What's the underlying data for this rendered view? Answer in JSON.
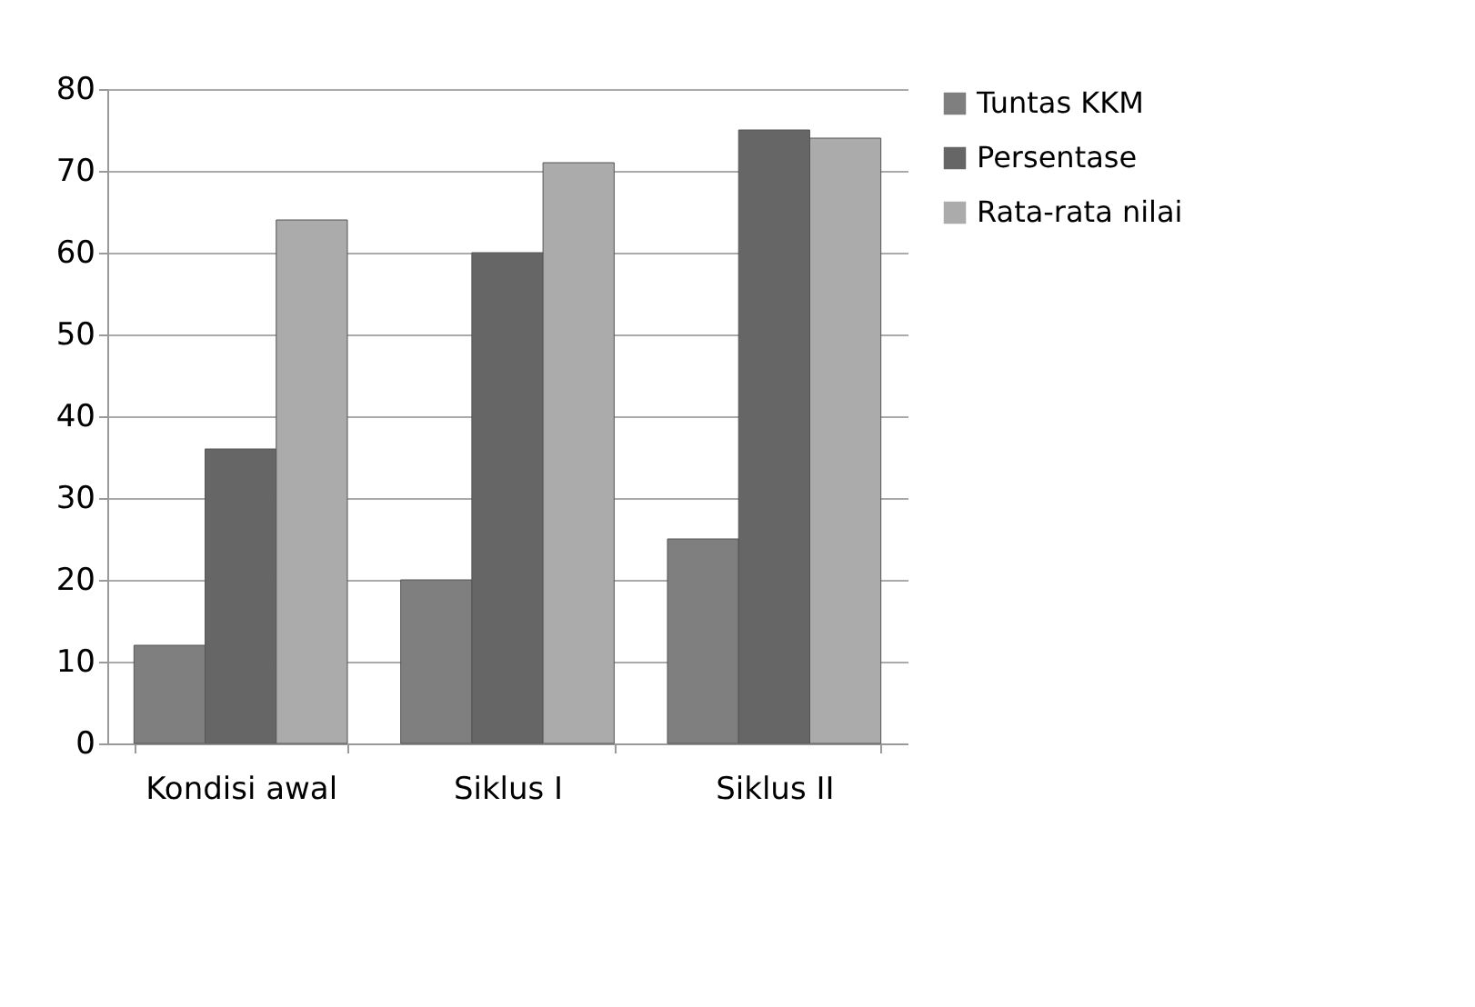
{
  "chart_data": {
    "type": "bar",
    "categories": [
      "Kondisi awal",
      "Siklus  I",
      "Siklus II"
    ],
    "series": [
      {
        "name": "Tuntas KKM",
        "color": "#7f7f7f",
        "values": [
          12,
          20,
          25
        ]
      },
      {
        "name": "Persentase",
        "color": "#666666",
        "values": [
          36,
          60,
          75
        ]
      },
      {
        "name": "Rata-rata nilai",
        "color": "#ababab",
        "values": [
          64,
          71,
          74
        ]
      }
    ],
    "ylim": [
      0,
      80
    ],
    "yticks": [
      0,
      10,
      20,
      30,
      40,
      50,
      60,
      70,
      80
    ],
    "grid": "y",
    "legend": "right"
  }
}
